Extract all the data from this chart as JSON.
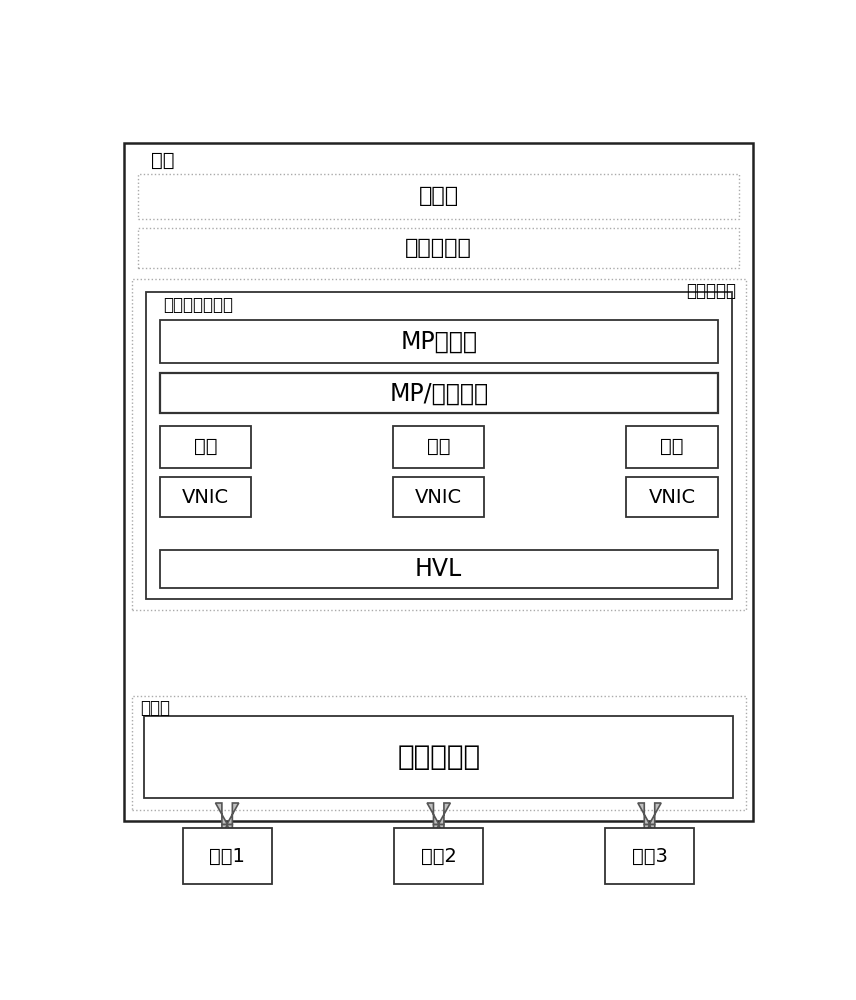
{
  "bg_color": "#ffffff",
  "layers": {
    "terminal_label": "终端",
    "app_layer": "应用层",
    "net_transport": "网络传输层",
    "hw_driver_label": "硬件驱动层",
    "micro_driver_label": "微型端口驱动器",
    "mp_player": "MP播放器",
    "mp_interface": "MP/端口接口",
    "port": "端口",
    "vnic": "VNIC",
    "hvl": "HVL",
    "physical_label": "物理层",
    "radio_hw": "无线电硬件",
    "network1": "网络1",
    "network2": "网络2",
    "network3": "网络3"
  },
  "arrow_fill": "#c8c8c8",
  "arrow_edge": "#555555",
  "dotted_color": "#aaaaaa",
  "solid_color": "#333333"
}
